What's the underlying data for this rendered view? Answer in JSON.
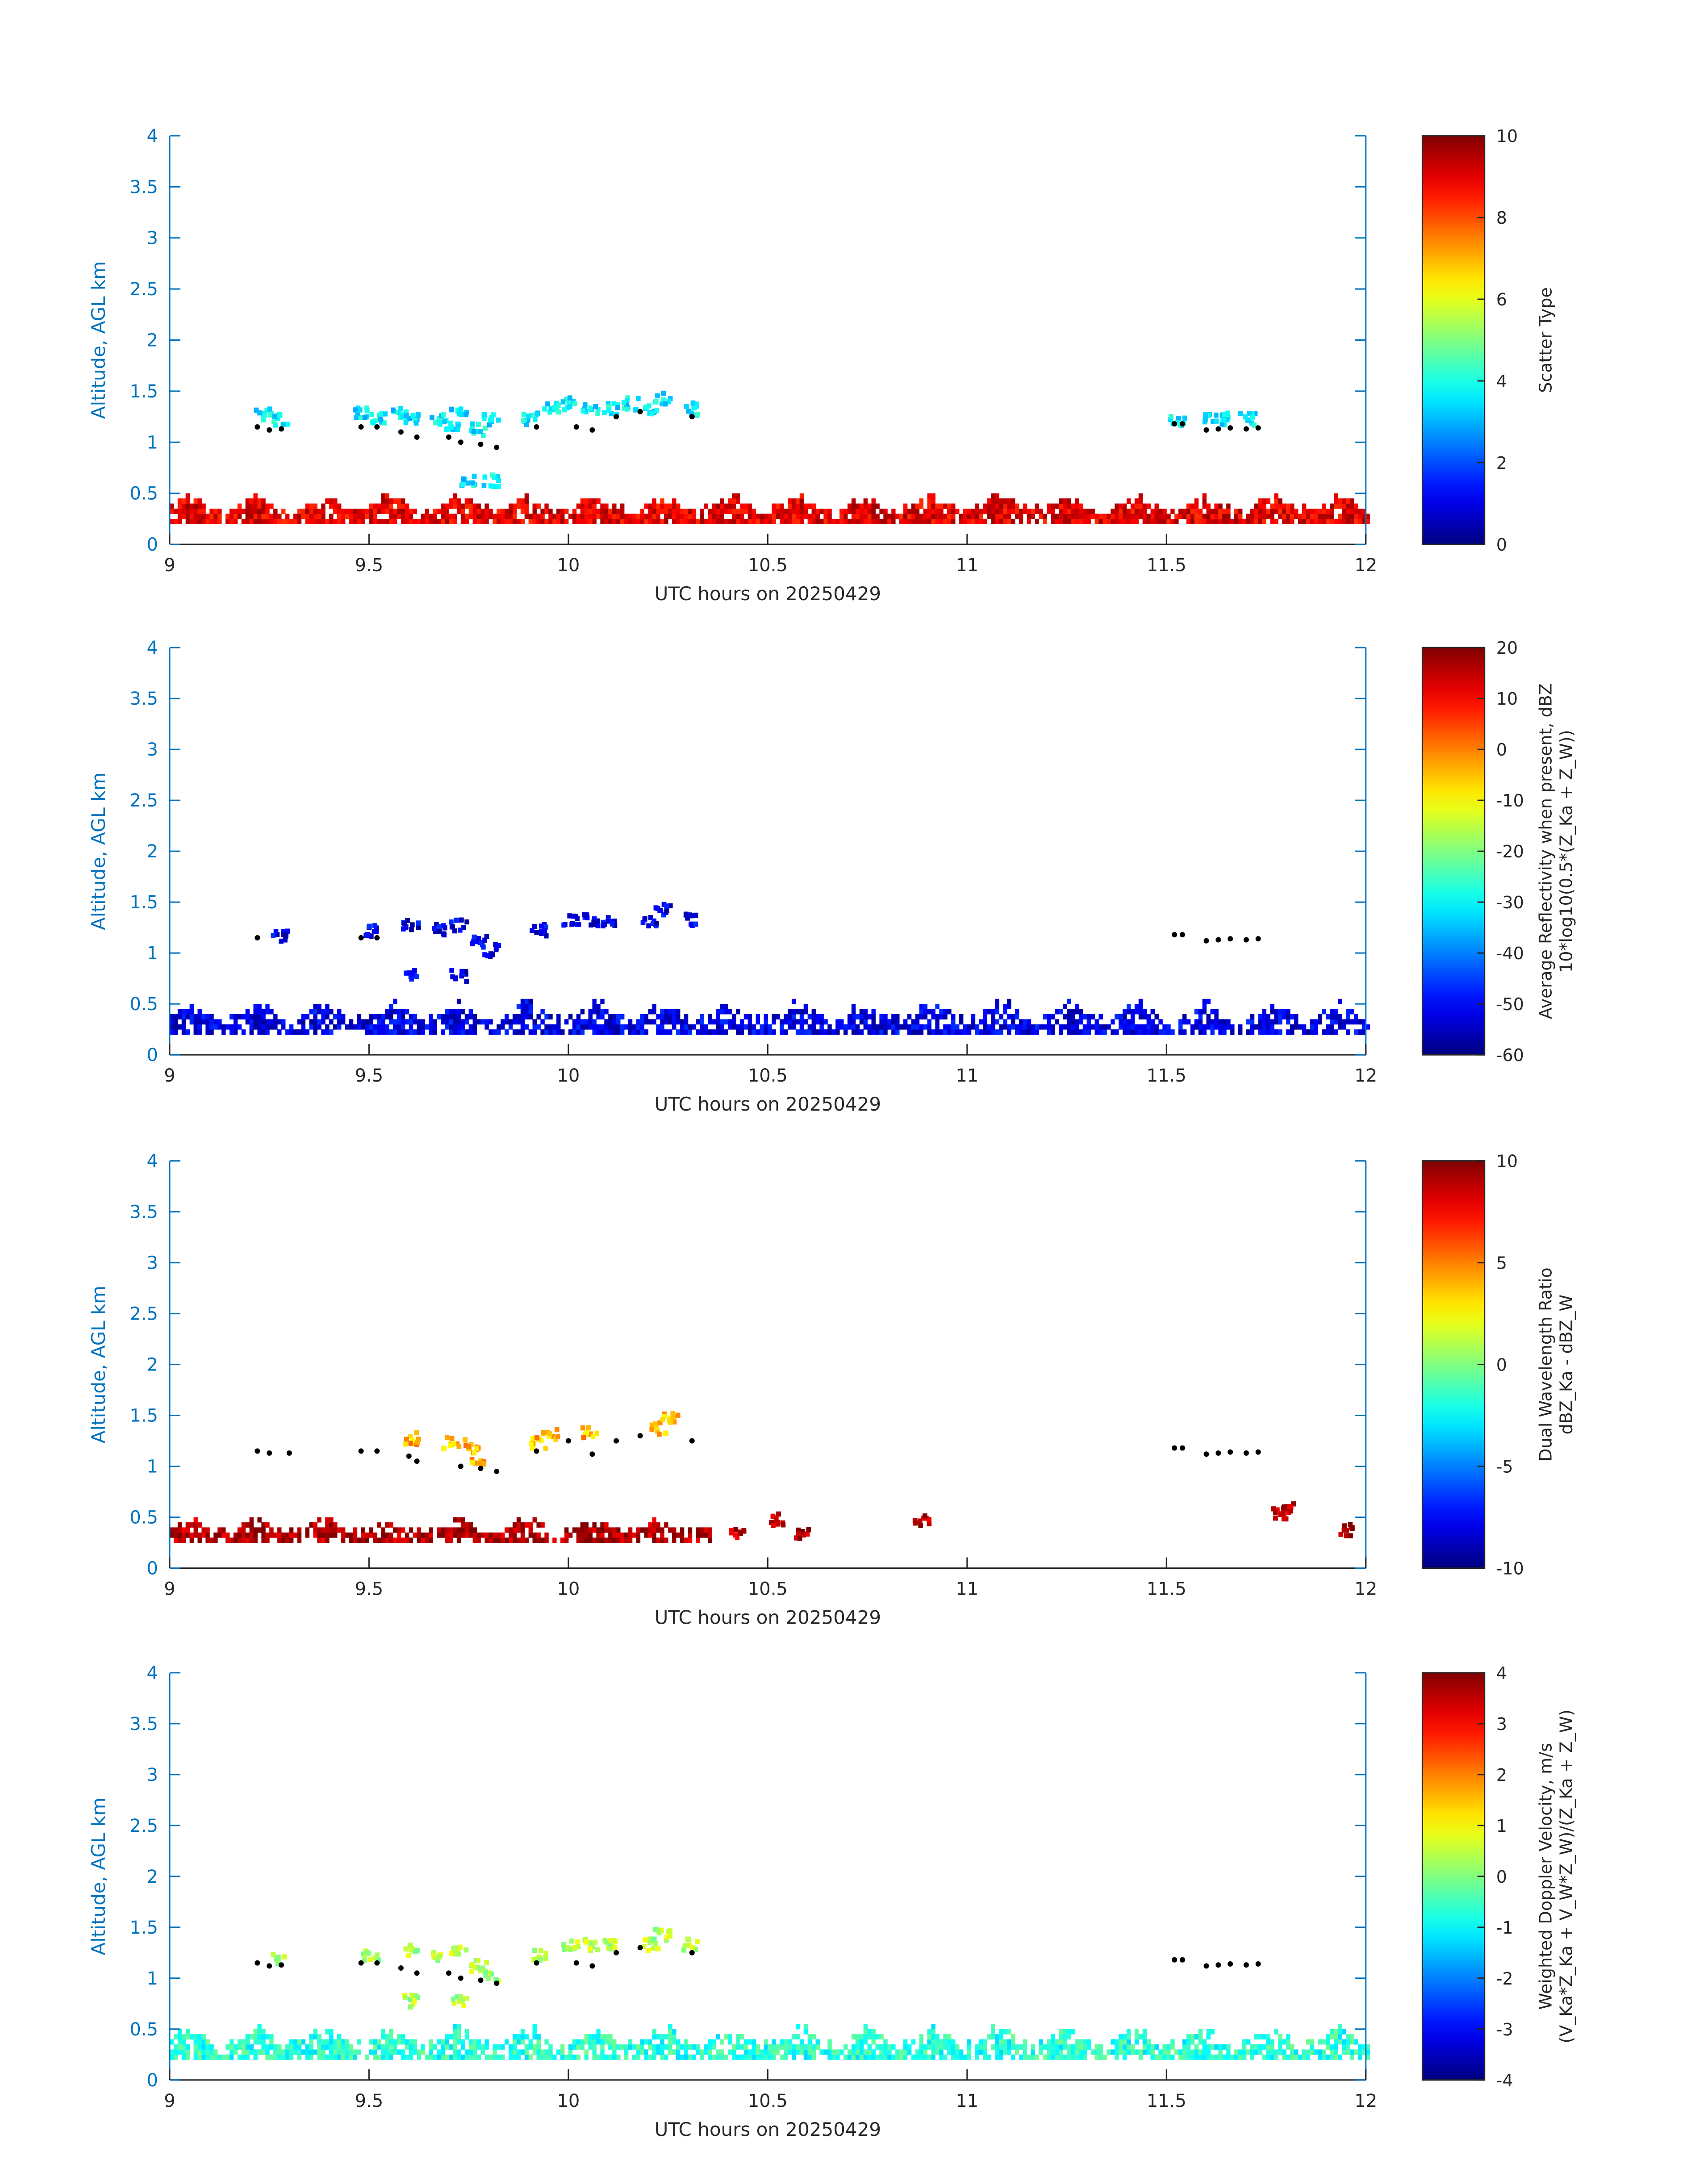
{
  "figure": {
    "panel_count": 4
  },
  "chart_data": [
    {
      "type": "heatmap",
      "title": "",
      "xlabel": "UTC hours on 20250429",
      "ylabel": "Altitude, AGL km",
      "xlim": [
        9,
        12
      ],
      "ylim": [
        0,
        4
      ],
      "xticks": [
        "9",
        "9.5",
        "10",
        "10.5",
        "11",
        "11.5",
        "12"
      ],
      "yticks": [
        "0",
        "0.5",
        "1",
        "1.5",
        "2",
        "2.5",
        "3",
        "3.5",
        "4"
      ],
      "colorbar": {
        "label": "Scatter Type",
        "label2": "",
        "range": [
          0,
          10
        ],
        "ticks": [
          "0",
          "2",
          "4",
          "6",
          "8",
          "10"
        ],
        "colormap": "jet"
      },
      "layers": [
        {
          "desc": "surface layer",
          "value": 9,
          "x": [
            9.0,
            12.0
          ],
          "y": [
            0.2,
            0.5
          ],
          "fill": 0.9
        },
        {
          "desc": "cloud patches",
          "value": 3.6,
          "points": [
            [
              9.23,
              1.25
            ],
            [
              9.27,
              1.2
            ],
            [
              9.47,
              1.25
            ],
            [
              9.52,
              1.2
            ],
            [
              9.57,
              1.25
            ],
            [
              9.6,
              1.2
            ],
            [
              9.67,
              1.2
            ],
            [
              9.7,
              1.15
            ],
            [
              9.72,
              1.25
            ],
            [
              9.77,
              1.1
            ],
            [
              9.8,
              1.2
            ],
            [
              9.9,
              1.2
            ],
            [
              9.95,
              1.3
            ],
            [
              10.0,
              1.35
            ],
            [
              10.05,
              1.3
            ],
            [
              10.1,
              1.3
            ],
            [
              10.15,
              1.35
            ],
            [
              10.2,
              1.3
            ],
            [
              10.23,
              1.4
            ],
            [
              10.3,
              1.3
            ],
            [
              11.52,
              1.2
            ],
            [
              11.6,
              1.2
            ],
            [
              11.65,
              1.2
            ],
            [
              11.7,
              1.2
            ]
          ]
        },
        {
          "desc": "columns",
          "value": 3.6,
          "points": [
            [
              9.74,
              0.6
            ],
            [
              9.8,
              0.6
            ]
          ]
        }
      ],
      "cloud_base_dots": [
        [
          9.22,
          1.15
        ],
        [
          9.25,
          1.12
        ],
        [
          9.28,
          1.13
        ],
        [
          9.48,
          1.15
        ],
        [
          9.52,
          1.15
        ],
        [
          9.58,
          1.1
        ],
        [
          9.62,
          1.05
        ],
        [
          9.7,
          1.05
        ],
        [
          9.73,
          1.0
        ],
        [
          9.78,
          0.98
        ],
        [
          9.82,
          0.95
        ],
        [
          9.92,
          1.15
        ],
        [
          10.02,
          1.15
        ],
        [
          10.06,
          1.12
        ],
        [
          10.12,
          1.25
        ],
        [
          10.18,
          1.3
        ],
        [
          10.31,
          1.25
        ],
        [
          11.52,
          1.18
        ],
        [
          11.54,
          1.18
        ],
        [
          11.6,
          1.12
        ],
        [
          11.63,
          1.13
        ],
        [
          11.66,
          1.14
        ],
        [
          11.7,
          1.13
        ],
        [
          11.73,
          1.14
        ]
      ]
    },
    {
      "type": "heatmap",
      "title": "",
      "xlabel": "UTC hours on 20250429",
      "ylabel": "Altitude, AGL km",
      "xlim": [
        9,
        12
      ],
      "ylim": [
        0,
        4
      ],
      "xticks": [
        "9",
        "9.5",
        "10",
        "10.5",
        "11",
        "11.5",
        "12"
      ],
      "yticks": [
        "0",
        "0.5",
        "1",
        "1.5",
        "2",
        "2.5",
        "3",
        "3.5",
        "4"
      ],
      "colorbar": {
        "label": "Average Reflectivity when present, dBZ",
        "label2": "10*log10(0.5*(Z_Ka + Z_W))",
        "range": [
          -60,
          20
        ],
        "ticks": [
          "-60",
          "-50",
          "-40",
          "-30",
          "-20",
          "-10",
          "0",
          "10",
          "20"
        ],
        "colormap": "jet"
      },
      "layers": [
        {
          "desc": "surface layer",
          "value": -52,
          "x": [
            9.0,
            12.0
          ],
          "y": [
            0.2,
            0.55
          ],
          "fill": 0.75
        },
        {
          "desc": "cloud patches",
          "value": -52,
          "points": [
            [
              9.27,
              1.15
            ],
            [
              9.5,
              1.2
            ],
            [
              9.6,
              1.25
            ],
            [
              9.67,
              1.2
            ],
            [
              9.72,
              1.25
            ],
            [
              9.77,
              1.1
            ],
            [
              9.8,
              1.0
            ],
            [
              9.92,
              1.2
            ],
            [
              10.0,
              1.3
            ],
            [
              10.05,
              1.3
            ],
            [
              10.1,
              1.3
            ],
            [
              10.2,
              1.3
            ],
            [
              10.23,
              1.4
            ],
            [
              10.3,
              1.3
            ],
            [
              9.6,
              0.75
            ],
            [
              9.72,
              0.75
            ]
          ]
        }
      ],
      "cloud_base_dots": [
        [
          9.22,
          1.15
        ],
        [
          9.48,
          1.15
        ],
        [
          9.52,
          1.15
        ],
        [
          11.52,
          1.18
        ],
        [
          11.54,
          1.18
        ],
        [
          11.6,
          1.12
        ],
        [
          11.63,
          1.13
        ],
        [
          11.66,
          1.14
        ],
        [
          11.7,
          1.13
        ],
        [
          11.73,
          1.14
        ]
      ]
    },
    {
      "type": "heatmap",
      "title": "",
      "xlabel": "UTC hours on 20250429",
      "ylabel": "Altitude, AGL km",
      "xlim": [
        9,
        12
      ],
      "ylim": [
        0,
        4
      ],
      "xticks": [
        "9",
        "9.5",
        "10",
        "10.5",
        "11",
        "11.5",
        "12"
      ],
      "yticks": [
        "0",
        "0.5",
        "1",
        "1.5",
        "2",
        "2.5",
        "3",
        "3.5",
        "4"
      ],
      "colorbar": {
        "label": "Dual Wavelength Ratio",
        "label2": "dBZ_Ka - dBZ_W",
        "range": [
          -10,
          10
        ],
        "ticks": [
          "-10",
          "-5",
          "0",
          "5",
          "10"
        ],
        "colormap": "jet"
      },
      "layers": [
        {
          "desc": "surface layer",
          "value": 9,
          "x": [
            9.0,
            10.35
          ],
          "y": [
            0.25,
            0.5
          ],
          "fill": 0.8
        },
        {
          "desc": "cloud patches",
          "value": 4,
          "points": [
            [
              9.6,
              1.25
            ],
            [
              9.7,
              1.2
            ],
            [
              9.75,
              1.2
            ],
            [
              9.77,
              1.05
            ],
            [
              9.92,
              1.2
            ],
            [
              9.95,
              1.3
            ],
            [
              10.05,
              1.3
            ],
            [
              10.22,
              1.35
            ],
            [
              10.25,
              1.45
            ]
          ]
        },
        {
          "desc": "scattered",
          "value": 9,
          "points": [
            [
              10.42,
              0.3
            ],
            [
              10.52,
              0.45
            ],
            [
              10.58,
              0.3
            ],
            [
              10.88,
              0.45
            ],
            [
              11.78,
              0.5
            ],
            [
              11.8,
              0.55
            ],
            [
              11.95,
              0.35
            ]
          ]
        }
      ],
      "cloud_base_dots": [
        [
          9.22,
          1.15
        ],
        [
          9.25,
          1.13
        ],
        [
          9.3,
          1.13
        ],
        [
          9.48,
          1.15
        ],
        [
          9.52,
          1.15
        ],
        [
          9.6,
          1.1
        ],
        [
          9.62,
          1.05
        ],
        [
          9.73,
          1.0
        ],
        [
          9.78,
          0.98
        ],
        [
          9.82,
          0.95
        ],
        [
          9.92,
          1.15
        ],
        [
          10.0,
          1.25
        ],
        [
          10.06,
          1.12
        ],
        [
          10.12,
          1.25
        ],
        [
          10.18,
          1.3
        ],
        [
          10.31,
          1.25
        ],
        [
          11.52,
          1.18
        ],
        [
          11.54,
          1.18
        ],
        [
          11.6,
          1.12
        ],
        [
          11.63,
          1.13
        ],
        [
          11.66,
          1.14
        ],
        [
          11.7,
          1.13
        ],
        [
          11.73,
          1.14
        ]
      ]
    },
    {
      "type": "heatmap",
      "title": "",
      "xlabel": "UTC hours on 20250429",
      "ylabel": "Altitude, AGL km",
      "xlim": [
        9,
        12
      ],
      "ylim": [
        0,
        4
      ],
      "xticks": [
        "9",
        "9.5",
        "10",
        "10.5",
        "11",
        "11.5",
        "12"
      ],
      "yticks": [
        "0",
        "0.5",
        "1",
        "1.5",
        "2",
        "2.5",
        "3",
        "3.5",
        "4"
      ],
      "colorbar": {
        "label": "Weighted Doppler Velocity, m/s",
        "label2": "(V_Ka*Z_Ka + V_W*Z_W)/(Z_Ka + Z_W)",
        "range": [
          -4,
          4
        ],
        "ticks": [
          "-4",
          "-3",
          "-2",
          "-1",
          "0",
          "1",
          "2",
          "3",
          "4"
        ],
        "colormap": "jet"
      },
      "layers": [
        {
          "desc": "surface layer",
          "value": -0.7,
          "x": [
            9.0,
            12.0
          ],
          "y": [
            0.2,
            0.55
          ],
          "fill": 0.75
        },
        {
          "desc": "cloud patches",
          "value": 0.4,
          "points": [
            [
              9.27,
              1.15
            ],
            [
              9.5,
              1.2
            ],
            [
              9.6,
              1.25
            ],
            [
              9.67,
              1.2
            ],
            [
              9.72,
              1.25
            ],
            [
              9.77,
              1.1
            ],
            [
              9.8,
              1.0
            ],
            [
              9.92,
              1.2
            ],
            [
              10.0,
              1.3
            ],
            [
              10.05,
              1.3
            ],
            [
              10.1,
              1.3
            ],
            [
              10.2,
              1.3
            ],
            [
              10.23,
              1.4
            ],
            [
              10.3,
              1.3
            ],
            [
              9.6,
              0.75
            ],
            [
              9.72,
              0.75
            ]
          ]
        }
      ],
      "cloud_base_dots": [
        [
          9.22,
          1.15
        ],
        [
          9.25,
          1.12
        ],
        [
          9.28,
          1.13
        ],
        [
          9.48,
          1.15
        ],
        [
          9.52,
          1.15
        ],
        [
          9.58,
          1.1
        ],
        [
          9.62,
          1.05
        ],
        [
          9.7,
          1.05
        ],
        [
          9.73,
          1.0
        ],
        [
          9.78,
          0.98
        ],
        [
          9.82,
          0.95
        ],
        [
          9.92,
          1.15
        ],
        [
          10.02,
          1.15
        ],
        [
          10.06,
          1.12
        ],
        [
          10.12,
          1.25
        ],
        [
          10.18,
          1.3
        ],
        [
          10.31,
          1.25
        ],
        [
          11.52,
          1.18
        ],
        [
          11.54,
          1.18
        ],
        [
          11.6,
          1.12
        ],
        [
          11.63,
          1.13
        ],
        [
          11.66,
          1.14
        ],
        [
          11.7,
          1.13
        ],
        [
          11.73,
          1.14
        ]
      ]
    }
  ]
}
